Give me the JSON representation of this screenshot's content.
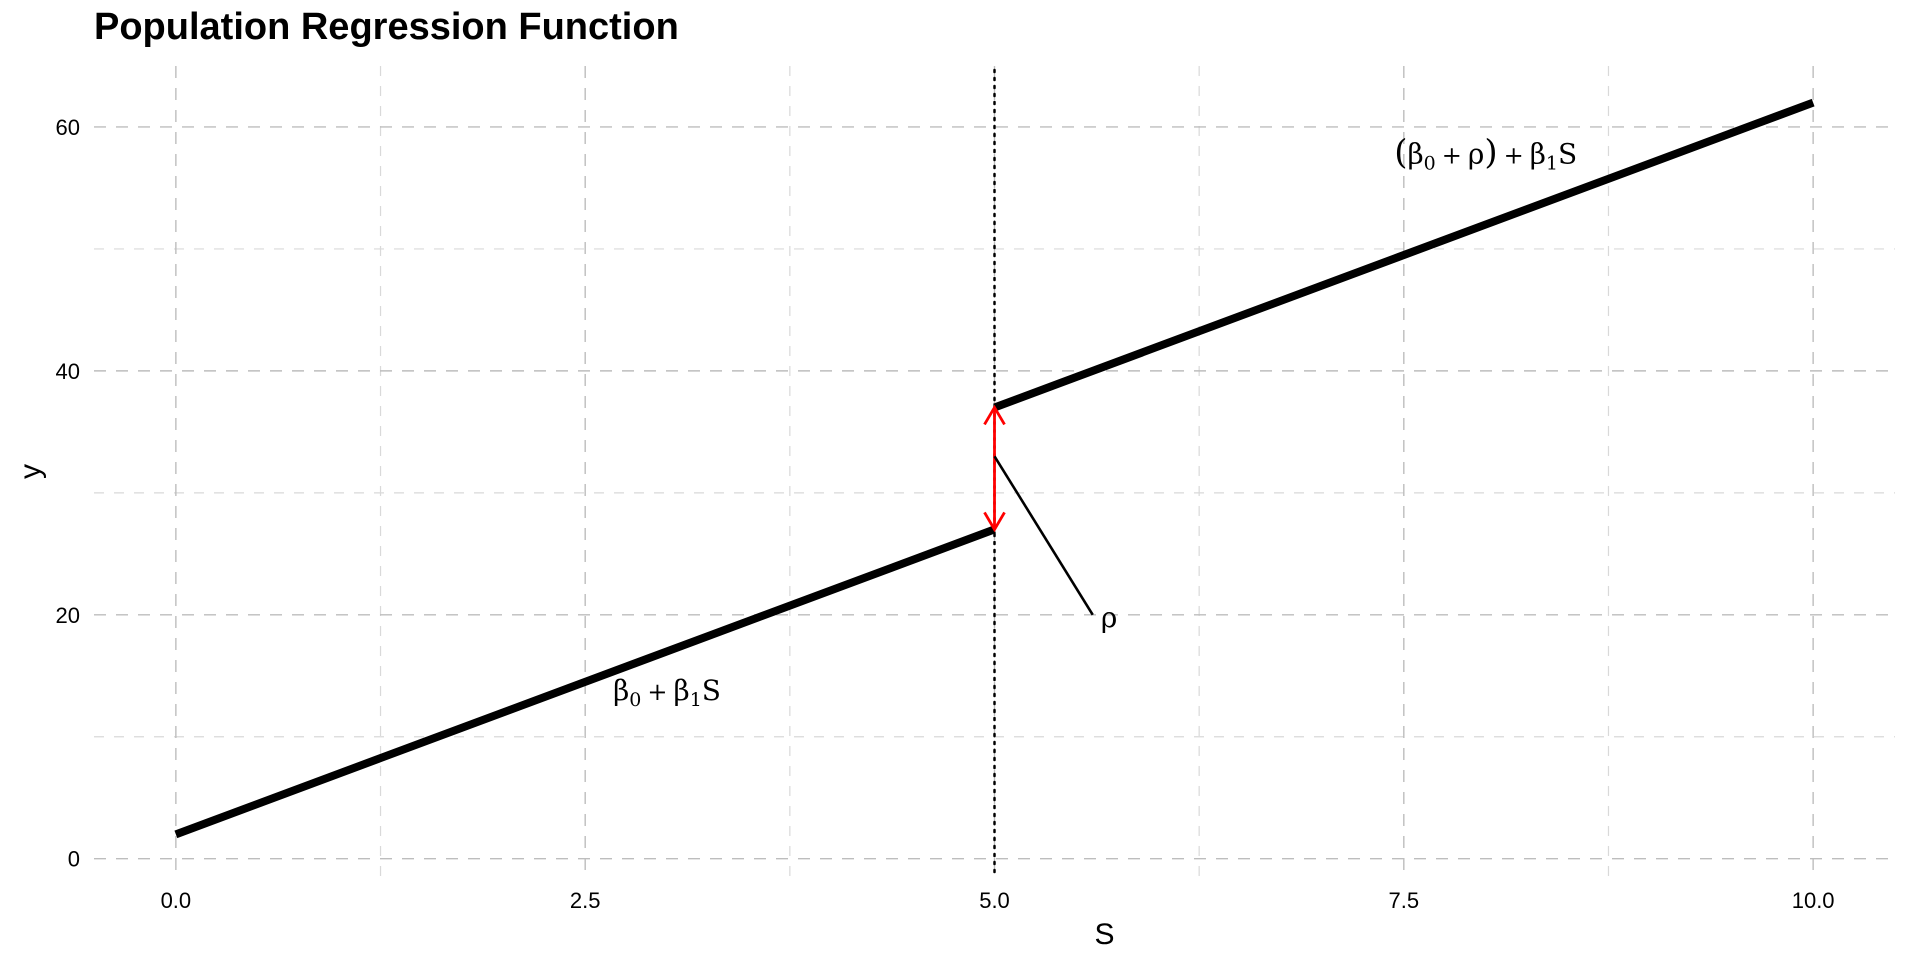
{
  "chart_data": {
    "type": "line",
    "title": "Population Regression Function",
    "xlabel": "S",
    "ylabel": "y",
    "xlim": [
      -0.5,
      10.5
    ],
    "ylim": [
      -1.5,
      65
    ],
    "x_ticks": [
      0.0,
      2.5,
      5.0,
      7.5,
      10.0
    ],
    "x_tick_labels": [
      "0.0",
      "2.5",
      "5.0",
      "7.5",
      "10.0"
    ],
    "y_ticks": [
      0,
      20,
      40,
      60
    ],
    "y_tick_labels": [
      "0",
      "20",
      "40",
      "60"
    ],
    "x_minor_ticks": [
      1.25,
      3.75,
      6.25,
      8.75
    ],
    "y_minor_ticks": [
      10,
      30,
      50
    ],
    "grid": true,
    "legend": "none",
    "series": [
      {
        "x": [
          0,
          5
        ],
        "y": [
          2,
          27
        ]
      },
      {
        "x": [
          5,
          10
        ],
        "y": [
          37,
          62
        ]
      }
    ],
    "cutoff": {
      "x": 5
    },
    "jump_arrow": {
      "x": 5,
      "y_from": 27,
      "y_to": 37,
      "color": "#ff0000"
    },
    "rho_pointer": {
      "from": [
        5,
        33
      ],
      "to": [
        5.6,
        20
      ]
    },
    "annotations": {
      "lower": {
        "beta": "β",
        "sub0": "0",
        "plus": "+",
        "beta2": "β",
        "sub1": "1",
        "var": "S",
        "x": 3.0,
        "y": 13
      },
      "upper": {
        "lparen": "(",
        "beta": "β",
        "sub0": "0",
        "plus1": "+",
        "rho": "ρ",
        "rparen": ")",
        "plus2": "+",
        "beta2": "β",
        "sub1": "1",
        "var": "S",
        "x": 8.0,
        "y": 57
      },
      "rho": {
        "text": "ρ",
        "x": 5.7,
        "y": 19
      }
    }
  }
}
